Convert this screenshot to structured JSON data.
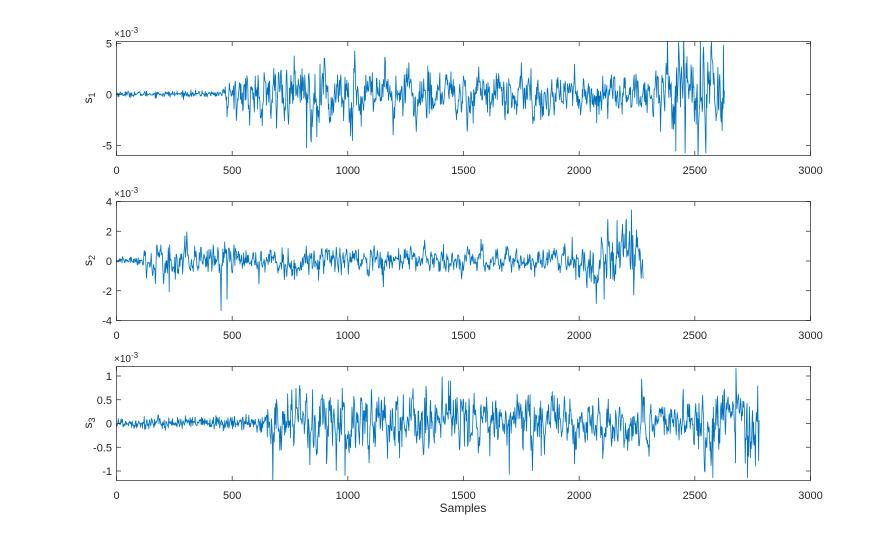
{
  "figure": {
    "xlabel": "Samples",
    "line_color": "#0072BD",
    "axis_color": "#262626",
    "background": "#ffffff"
  },
  "chart_data": [
    {
      "type": "line",
      "ylabel_main": "s",
      "ylabel_sub": "1",
      "exponent_base": "×10",
      "exponent_power": "-3",
      "xlim": [
        0,
        3000
      ],
      "ylim": [
        -6,
        5.2
      ],
      "xticks": [
        0,
        500,
        1000,
        1500,
        2000,
        2500,
        3000
      ],
      "yticks": [
        -5,
        0,
        5
      ],
      "ytick_labels": [
        "-5",
        "0",
        "5"
      ],
      "grid": false,
      "series": [
        {
          "length": 2630,
          "envelope": [
            [
              0,
              0.25
            ],
            [
              450,
              0.3
            ],
            [
              470,
              1.4
            ],
            [
              560,
              2.2
            ],
            [
              800,
              3.0
            ],
            [
              850,
              3.2
            ],
            [
              1000,
              2.3
            ],
            [
              1500,
              2.3
            ],
            [
              2000,
              2.1
            ],
            [
              2300,
              2.0
            ],
            [
              2400,
              3.3
            ],
            [
              2500,
              4.0
            ],
            [
              2550,
              3.4
            ],
            [
              2630,
              3.2
            ]
          ],
          "peaks": [
            {
              "x": 824,
              "y": -5.3
            },
            {
              "x": 2420,
              "y": -5.6
            },
            {
              "x": 2460,
              "y": -5.8
            },
            {
              "x": 2525,
              "y": 5.2
            },
            {
              "x": 2540,
              "y": 4.6
            },
            {
              "x": 2625,
              "y": 4.8
            },
            {
              "x": 2620,
              "y": -3.6
            }
          ]
        }
      ]
    },
    {
      "type": "line",
      "ylabel_main": "s",
      "ylabel_sub": "2",
      "exponent_base": "×10",
      "exponent_power": "-3",
      "xlim": [
        0,
        3000
      ],
      "ylim": [
        -4,
        4
      ],
      "xticks": [
        0,
        500,
        1000,
        1500,
        2000,
        2500,
        3000
      ],
      "yticks": [
        -4,
        -2,
        0,
        2,
        4
      ],
      "ytick_labels": [
        "-4",
        "-2",
        "0",
        "2",
        "4"
      ],
      "grid": false,
      "series": [
        {
          "length": 2280,
          "envelope": [
            [
              0,
              0.15
            ],
            [
              100,
              0.3
            ],
            [
              150,
              0.9
            ],
            [
              250,
              1.1
            ],
            [
              450,
              1.3
            ],
            [
              500,
              1.0
            ],
            [
              1000,
              0.9
            ],
            [
              1500,
              0.75
            ],
            [
              1900,
              0.7
            ],
            [
              2000,
              1.1
            ],
            [
              2050,
              1.6
            ],
            [
              2150,
              1.8
            ],
            [
              2280,
              1.5
            ]
          ],
          "peaks": [
            {
              "x": 2165,
              "y": 2.7
            },
            {
              "x": 2075,
              "y": -2.9
            },
            {
              "x": 2110,
              "y": -2.6
            },
            {
              "x": 480,
              "y": -2.6
            },
            {
              "x": 230,
              "y": -2.1
            }
          ]
        }
      ]
    },
    {
      "type": "line",
      "ylabel_main": "s",
      "ylabel_sub": "3",
      "exponent_base": "×10",
      "exponent_power": "-3",
      "xlim": [
        0,
        3000
      ],
      "ylim": [
        -1.2,
        1.2
      ],
      "xticks": [
        0,
        500,
        1000,
        1500,
        2000,
        2500,
        3000
      ],
      "yticks": [
        -1,
        -0.5,
        0,
        0.5,
        1
      ],
      "ytick_labels": [
        "-1",
        "-0.5",
        "0",
        "0.5",
        "1"
      ],
      "grid": false,
      "series": [
        {
          "length": 2780,
          "envelope": [
            [
              0,
              0.12
            ],
            [
              600,
              0.13
            ],
            [
              650,
              0.3
            ],
            [
              700,
              0.6
            ],
            [
              1000,
              0.65
            ],
            [
              1500,
              0.55
            ],
            [
              2000,
              0.45
            ],
            [
              2400,
              0.45
            ],
            [
              2500,
              0.65
            ],
            [
              2600,
              0.8
            ],
            [
              2780,
              0.75
            ]
          ],
          "peaks": [
            {
              "x": 1410,
              "y": 0.97
            },
            {
              "x": 2680,
              "y": 1.15
            },
            {
              "x": 990,
              "y": -1.1
            },
            {
              "x": 1700,
              "y": -1.08
            },
            {
              "x": 2580,
              "y": -1.15
            },
            {
              "x": 2730,
              "y": -1.15
            }
          ]
        }
      ]
    }
  ]
}
